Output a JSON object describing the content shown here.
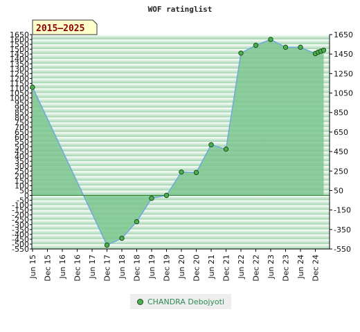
{
  "chart_data": {
    "type": "area",
    "title": "WOF ratinglist",
    "period_badge": "2015–2025",
    "x": [
      "Jun 15",
      "Dec 15",
      "Jun 16",
      "Dec 16",
      "Jun 17",
      "Dec 17",
      "Jun 18",
      "Dec 18",
      "Jun 19",
      "Dec 19",
      "Jun 20",
      "Dec 20",
      "Jun 21",
      "Dec 21",
      "Jun 22",
      "Dec 22",
      "Jun 23",
      "Dec 23",
      "Jun 24",
      "Dec 24"
    ],
    "series": [
      {
        "name": "CHANDRA Debojyoti",
        "points": [
          {
            "x": "Jun 15",
            "y": 1110
          },
          {
            "x": "Dec 17",
            "y": -510
          },
          {
            "x": "Jun 18",
            "y": -440
          },
          {
            "x": "Dec 18",
            "y": -270
          },
          {
            "x": "Jun 19",
            "y": -30
          },
          {
            "x": "Dec 19",
            "y": 0
          },
          {
            "x": "Jun 20",
            "y": 240
          },
          {
            "x": "Dec 20",
            "y": 235
          },
          {
            "x": "Jun 21",
            "y": 520
          },
          {
            "x": "Dec 21",
            "y": 475
          },
          {
            "x": "Jun 22",
            "y": 1460
          },
          {
            "x": "Dec 22",
            "y": 1540
          },
          {
            "x": "Jun 23",
            "y": 1600
          },
          {
            "x": "Dec 23",
            "y": 1520
          },
          {
            "x": "Jun 24",
            "y": 1520
          },
          {
            "x": "Dec 24",
            "y": 1455
          },
          {
            "x": "Dec 24",
            "y": 1470
          },
          {
            "x": "Dec 24",
            "y": 1480
          },
          {
            "x": "Dec 24",
            "y": 1490
          }
        ]
      }
    ],
    "left_ticks": [
      1650,
      1600,
      1550,
      1500,
      1450,
      1400,
      1350,
      1300,
      1250,
      1200,
      1150,
      1100,
      1050,
      1000,
      950,
      900,
      850,
      800,
      750,
      700,
      650,
      600,
      550,
      500,
      450,
      400,
      350,
      300,
      250,
      200,
      150,
      100,
      50,
      0,
      -50,
      -100,
      -150,
      -200,
      -250,
      -300,
      -350,
      -400,
      -450,
      -500,
      -550
    ],
    "right_ticks": [
      1650,
      1450,
      1250,
      1050,
      850,
      650,
      450,
      250,
      50,
      -150,
      -350,
      -550
    ],
    "ylim": [
      -550,
      1650
    ],
    "grid": true,
    "legend_position": "bottom-center",
    "colors": {
      "area_fill": "#7cc68f",
      "line": "#6fa8dc",
      "marker_fill": "#4caf50",
      "marker_stroke": "#1b4d1b",
      "band_dark": "#9fd3ac",
      "band_light": "#ffffff"
    }
  }
}
